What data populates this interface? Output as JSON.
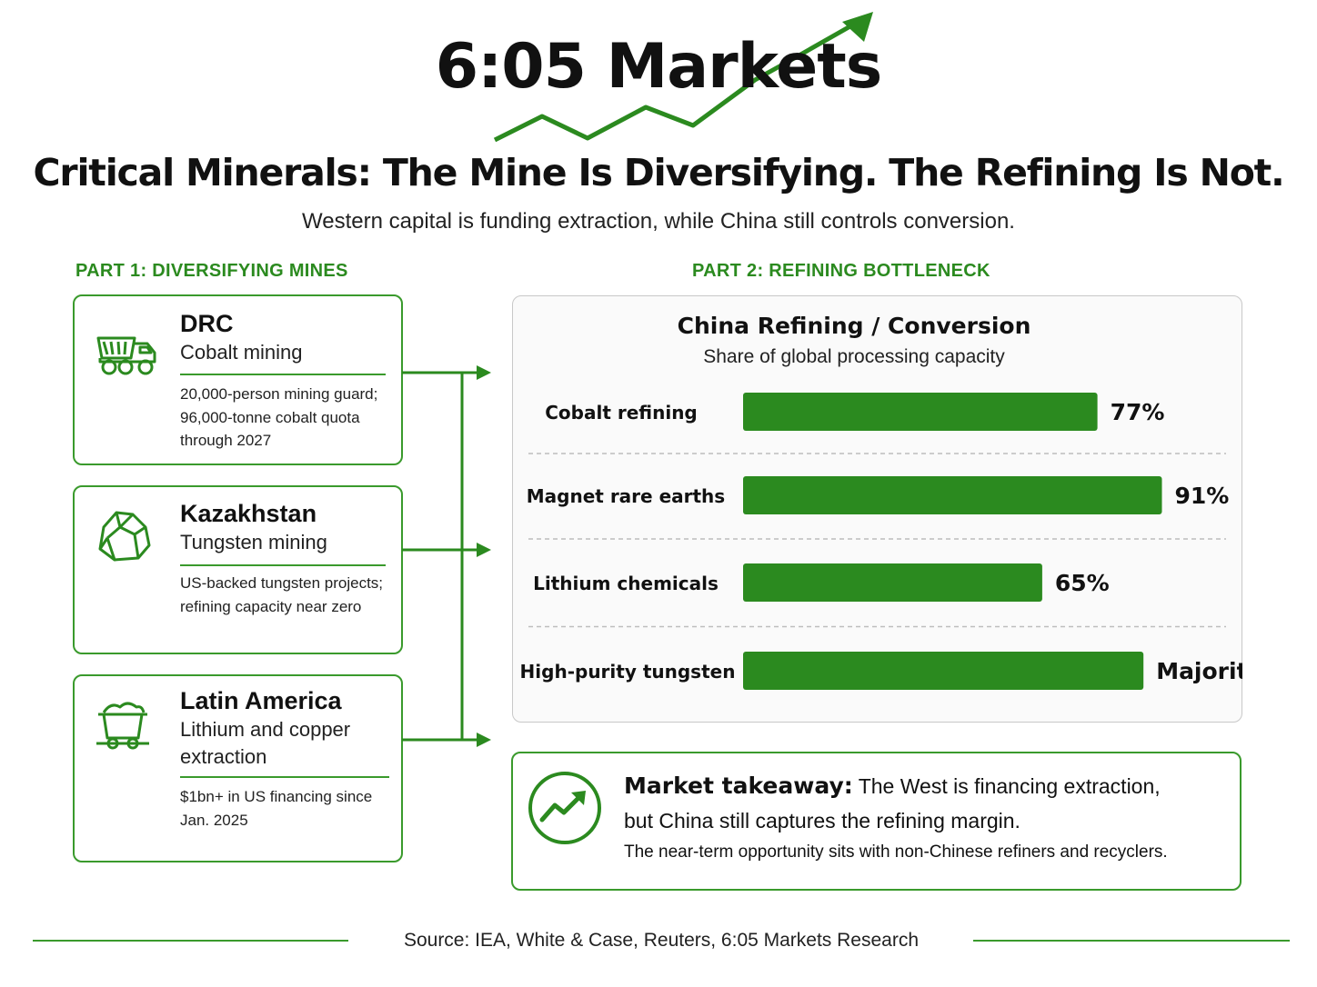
{
  "brand": {
    "name": "6:05 Markets"
  },
  "headline": "Critical Minerals: The Mine Is Diversifying. The Refining Is Not.",
  "subheadline": "Western capital is funding extraction, while China still controls conversion.",
  "part1": {
    "label": "PART 1: DIVERSIFYING MINES",
    "cards": [
      {
        "region": "DRC",
        "activity": "Cobalt mining",
        "detail": "20,000-person mining guard; 96,000-tonne cobalt quota through 2027",
        "icon": "dump-truck-icon"
      },
      {
        "region": "Kazakhstan",
        "activity": "Tungsten mining",
        "detail": "US-backed tungsten projects; refining capacity near zero",
        "icon": "ore-rock-icon"
      },
      {
        "region": "Latin America",
        "activity": "Lithium and copper extraction",
        "detail": "$1bn+ in US financing since Jan. 2025",
        "icon": "mine-cart-icon"
      }
    ]
  },
  "part2": {
    "label": "PART 2: REFINING BOTTLENECK"
  },
  "chart_data": {
    "type": "bar",
    "orientation": "horizontal",
    "title": "China Refining / Conversion",
    "subtitle": "Share of global processing capacity",
    "categories": [
      "Cobalt refining",
      "Magnet rare earths",
      "Lithium chemicals",
      "High-purity tungsten"
    ],
    "values": [
      77,
      91,
      65,
      null
    ],
    "value_labels": [
      "77%",
      "91%",
      "65%",
      "Majority"
    ],
    "unit": "%",
    "xlim": [
      0,
      100
    ],
    "bar_color": "#2b8a1f",
    "grid": false,
    "legend": "none"
  },
  "takeaway": {
    "heading": "Market takeaway:",
    "line1": " The West is financing extraction,",
    "line2": "but China still captures the refining margin.",
    "line3": "The near-term opportunity sits with non-Chinese refiners and recyclers.",
    "icon": "trend-up-icon"
  },
  "source": "Source: IEA, White & Case, Reuters, 6:05 Markets Research",
  "colors": {
    "accent": "#2b8a1f",
    "text": "#111111",
    "card_border": "#3a9a2c"
  }
}
